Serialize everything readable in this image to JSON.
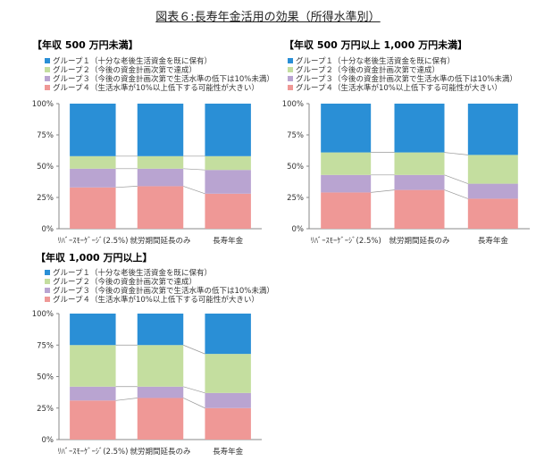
{
  "title": "図表６:長寿年金活用の効果（所得水準別）",
  "colors": {
    "group1": "#2a8fd6",
    "group2": "#c4de9f",
    "group3": "#b9a4d1",
    "group4": "#ef9896",
    "axis": "#888888",
    "connector": "#999999"
  },
  "chart_data": [
    {
      "type": "bar",
      "stacked": true,
      "title": "【年収 500 万円未満】",
      "categories": [
        "ﾘﾊﾞｰｽﾓｰｹﾞｰｼﾞ(2.5%)",
        "就労期間延長のみ",
        "長寿年金"
      ],
      "yticks": [
        "0%",
        "25%",
        "50%",
        "75%",
        "100%"
      ],
      "ylim": [
        0,
        100
      ],
      "series": [
        {
          "name": "グループ４（生活水準が10%以上低下する可能性が大きい）",
          "values": [
            33,
            34,
            28
          ]
        },
        {
          "name": "グループ３（今後の資金計画次第で生活水準の低下は10%未満）",
          "values": [
            15,
            14,
            19
          ]
        },
        {
          "name": "グループ２（今後の資金計画次第で達成）",
          "values": [
            10,
            10,
            11
          ]
        },
        {
          "name": "グループ１（十分な老後生活資金を既に保有）",
          "values": [
            42,
            42,
            42
          ]
        }
      ],
      "legend": [
        "グループ１（十分な老後生活資金を既に保有）",
        "グループ２（今後の資金計画次第で達成）",
        "グループ３（今後の資金計画次第で生活水準の低下は10%未満）",
        "グループ４（生活水準が10%以上低下する可能性が大きい）"
      ]
    },
    {
      "type": "bar",
      "stacked": true,
      "title": "【年収 500 万円以上 1,000 万円未満】",
      "categories": [
        "ﾘﾊﾞｰｽﾓｰｹﾞｰｼﾞ(2.5%)",
        "就労期間延長のみ",
        "長寿年金"
      ],
      "yticks": [
        "0%",
        "25%",
        "50%",
        "75%",
        "100%"
      ],
      "ylim": [
        0,
        100
      ],
      "series": [
        {
          "name": "グループ４（生活水準が10%以上低下する可能性が大きい）",
          "values": [
            29,
            31,
            24
          ]
        },
        {
          "name": "グループ３（今後の資金計画次第で生活水準の低下は10%未満）",
          "values": [
            14,
            12,
            12
          ]
        },
        {
          "name": "グループ２（今後の資金計画次第で達成）",
          "values": [
            18,
            18,
            23
          ]
        },
        {
          "name": "グループ１（十分な老後生活資金を既に保有）",
          "values": [
            39,
            39,
            41
          ]
        }
      ],
      "legend": [
        "グループ１（十分な老後生活資金を既に保有）",
        "グループ２（今後の資金計画次第で達成）",
        "グループ３（今後の資金計画次第で生活水準の低下は10%未満）",
        "グループ４（生活水準が10%以上低下する可能性が大きい）"
      ]
    },
    {
      "type": "bar",
      "stacked": true,
      "title": "【年収 1,000 万円以上】",
      "categories": [
        "ﾘﾊﾞｰｽﾓｰｹﾞｰｼﾞ(2.5%)",
        "就労期間延長のみ",
        "長寿年金"
      ],
      "yticks": [
        "0%",
        "25%",
        "50%",
        "75%",
        "100%"
      ],
      "ylim": [
        0,
        100
      ],
      "series": [
        {
          "name": "グループ４（生活水準が10%以上低下する可能性が大きい）",
          "values": [
            31,
            33,
            25
          ]
        },
        {
          "name": "グループ３（今後の資金計画次第で生活水準の低下は10%未満）",
          "values": [
            11,
            9,
            12
          ]
        },
        {
          "name": "グループ２（今後の資金計画次第で達成）",
          "values": [
            33,
            33,
            31
          ]
        },
        {
          "name": "グループ１（十分な老後生活資金を既に保有）",
          "values": [
            25,
            25,
            32
          ]
        }
      ],
      "legend": [
        "グループ１（十分な老後生活資金を既に保有）",
        "グループ２（今後の資金計画次第で達成）",
        "グループ３（今後の資金計画次第で生活水準の低下は10%未満）",
        "グループ４（生活水準が10%以上低下する可能性が大きい）"
      ]
    }
  ]
}
